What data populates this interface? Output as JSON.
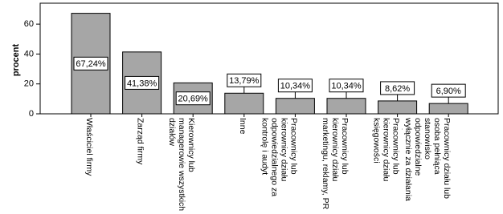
{
  "chart_data": {
    "type": "bar",
    "y_label": "procent",
    "categories": [
      "Właściciel firmy",
      "Zarząd firmy",
      "Kierownicy lub managerowie wszystkich działów",
      "Inne",
      "Pracownicy lub kierownicy działu odpowiedzialnego za kontrolę i audyt",
      "Pracownicy lub kierownicy działu marketingu, reklamy, PR",
      "Pracownicy lub kierownicy działu księgowości",
      "Pracownicy działu lub osoba pełniąca stanowisko odpowiedzialne wyłącznie za działania związane z CRS"
    ],
    "values": [
      67.24,
      41.38,
      20.69,
      13.79,
      10.34,
      10.34,
      8.62,
      6.9
    ],
    "value_labels": [
      "67,24%",
      "41,38%",
      "20,69%",
      "13,79%",
      "10,34%",
      "10,34%",
      "8,62%",
      "6,90%"
    ],
    "color": "#a6a6a6",
    "ylim": [
      0,
      74
    ],
    "yticks": [
      0,
      20,
      40,
      60
    ],
    "grid": false
  }
}
